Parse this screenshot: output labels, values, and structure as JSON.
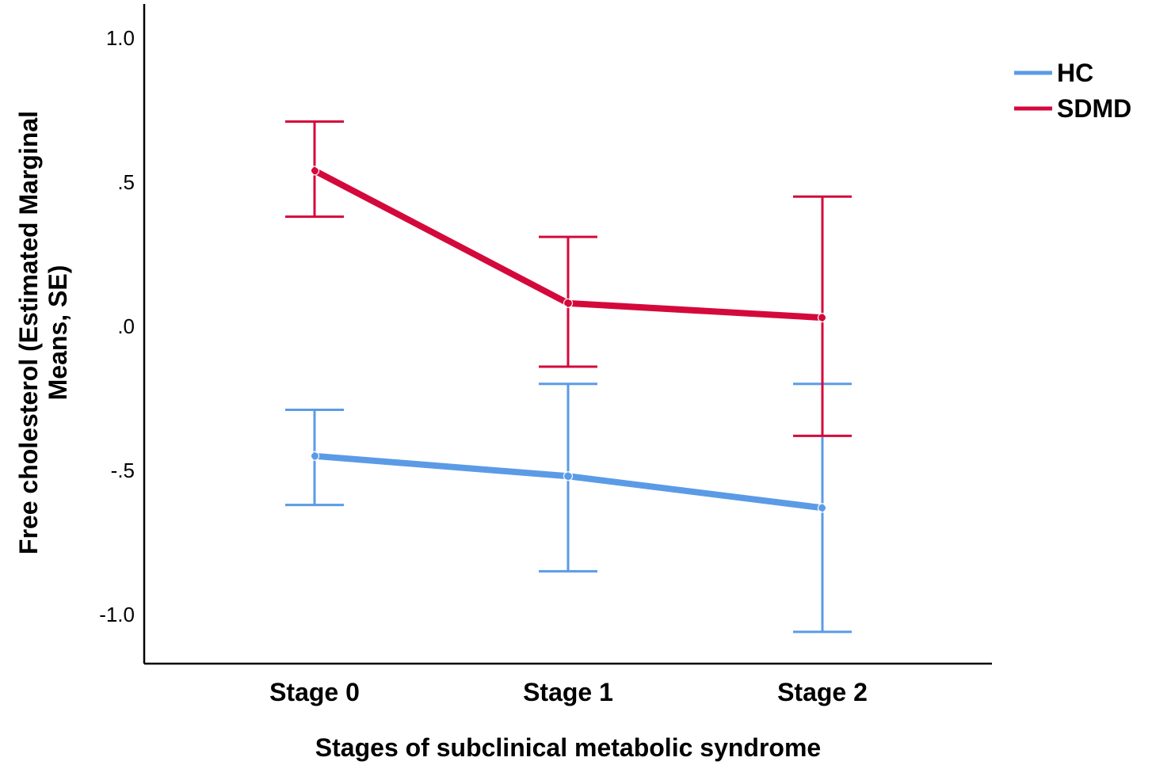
{
  "chart_data": {
    "type": "line",
    "xlabel": "Stages of subclinical metabolic syndrome",
    "ylabel_lines": [
      "Free cholesterol (Estimated Marginal",
      "Means, SE)"
    ],
    "categories": [
      "Stage 0",
      "Stage 1",
      "Stage 2"
    ],
    "ylim": [
      -1.15,
      1.12
    ],
    "yticks": [
      1.0,
      0.5,
      0.0,
      -0.5,
      -1.0
    ],
    "ytick_labels": [
      "1.0",
      ".5",
      ".0",
      "-.5",
      "-1.0"
    ],
    "grid": false,
    "legend_position": "top-right",
    "series": [
      {
        "name": "HC",
        "color": "#5b9be6",
        "values": [
          -0.45,
          -0.52,
          -0.63
        ],
        "error_low": [
          -0.62,
          -0.85,
          -1.06
        ],
        "error_high": [
          -0.29,
          -0.2,
          -0.2
        ]
      },
      {
        "name": "SDMD",
        "color": "#d4093b",
        "values": [
          0.54,
          0.08,
          0.03
        ],
        "error_low": [
          0.38,
          -0.14,
          -0.38
        ],
        "error_high": [
          0.71,
          0.31,
          0.45
        ]
      }
    ]
  }
}
